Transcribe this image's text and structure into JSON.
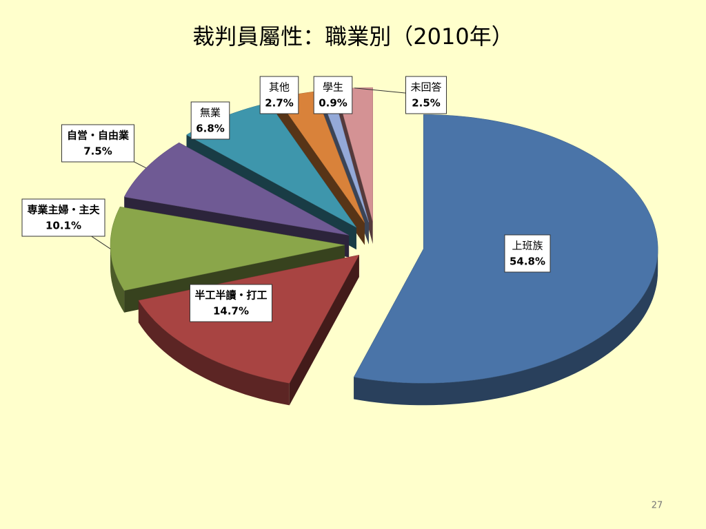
{
  "chart_data": {
    "type": "pie3d",
    "title": "裁判員屬性：職業別（2010年）",
    "categories": [
      "上班族",
      "半工半讀・打工",
      "専業主婦・主夫",
      "自営・自由業",
      "無業",
      "其他",
      "學生",
      "未回答"
    ],
    "values": [
      54.8,
      14.7,
      10.1,
      7.5,
      6.8,
      2.7,
      0.9,
      2.5
    ],
    "value_labels": [
      "54.8%",
      "14.7%",
      "10.1%",
      "7.5%",
      "6.8%",
      "2.7%",
      "0.9%",
      "2.5%"
    ],
    "colors": [
      "#4a74a8",
      "#a84442",
      "#8aa64a",
      "#6f5a94",
      "#3e96ac",
      "#d9823a",
      "#94a9d8",
      "#d49294"
    ]
  },
  "page_number": "27"
}
